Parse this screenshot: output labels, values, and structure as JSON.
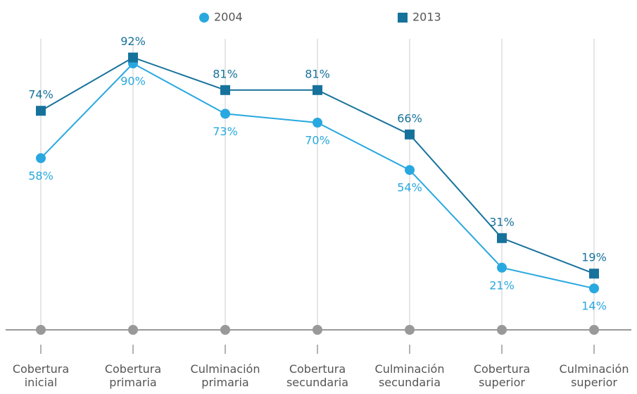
{
  "chart_data": {
    "type": "line",
    "categories": [
      "Cobertura inicial",
      "Cobertura primaria",
      "Culminación primaria",
      "Cobertura secundaria",
      "Culminación secundaria",
      "Cobertura superior",
      "Culminación superior"
    ],
    "series": [
      {
        "name": "2004",
        "color": "#29a8df",
        "marker": "circle",
        "values": [
          58,
          90,
          73,
          70,
          54,
          21,
          14
        ],
        "value_labels": [
          "58%",
          "90%",
          "73%",
          "70%",
          "54%",
          "21%",
          "14%"
        ]
      },
      {
        "name": "2013",
        "color": "#17729b",
        "marker": "square",
        "values": [
          74,
          92,
          81,
          81,
          66,
          31,
          19
        ],
        "value_labels": [
          "74%",
          "92%",
          "81%",
          "81%",
          "66%",
          "31%",
          "19%"
        ]
      }
    ],
    "ylim": [
      0,
      100
    ],
    "grid": true
  }
}
